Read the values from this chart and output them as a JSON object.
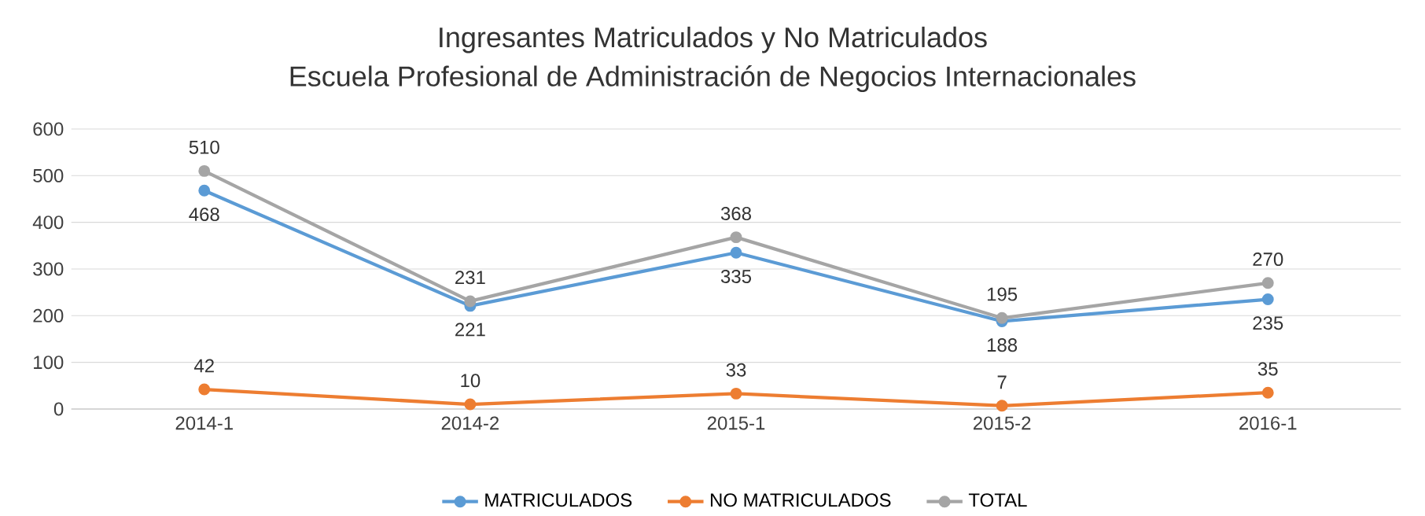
{
  "chart_data": {
    "type": "line",
    "title": "Ingresantes Matriculados y No Matriculados",
    "subtitle": "Escuela Profesional de Administración de Negocios Internacionales",
    "categories": [
      "2014-1",
      "2014-2",
      "2015-1",
      "2015-2",
      "2016-1"
    ],
    "series": [
      {
        "name": "MATRICULADOS",
        "color": "#5b9bd5",
        "values": [
          468,
          221,
          335,
          188,
          235
        ]
      },
      {
        "name": "NO MATRICULADOS",
        "color": "#ed7d31",
        "values": [
          42,
          10,
          33,
          7,
          35
        ]
      },
      {
        "name": "TOTAL",
        "color": "#a5a5a5",
        "values": [
          510,
          231,
          368,
          195,
          270
        ]
      }
    ],
    "ylim": [
      0,
      600
    ],
    "yticks": [
      0,
      100,
      200,
      300,
      400,
      500,
      600
    ],
    "grid": "y",
    "legend": "bottom",
    "marker": "circle",
    "line_style": "solid",
    "data_labels": true
  }
}
